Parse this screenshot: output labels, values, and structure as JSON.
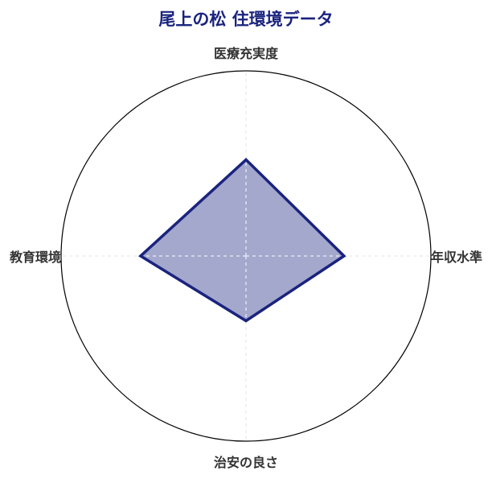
{
  "chart_data": {
    "type": "radar",
    "title": "尾上の松 住環境データ",
    "categories": [
      "医療充実度",
      "年収水準",
      "治安の良さ",
      "教育環境"
    ],
    "values": [
      52,
      53,
      35,
      57
    ],
    "rlim": [
      0,
      100
    ],
    "grid": true,
    "colors": {
      "title": "#1a237e",
      "line": "#1a237e",
      "fill": "#a3a8cc"
    }
  }
}
